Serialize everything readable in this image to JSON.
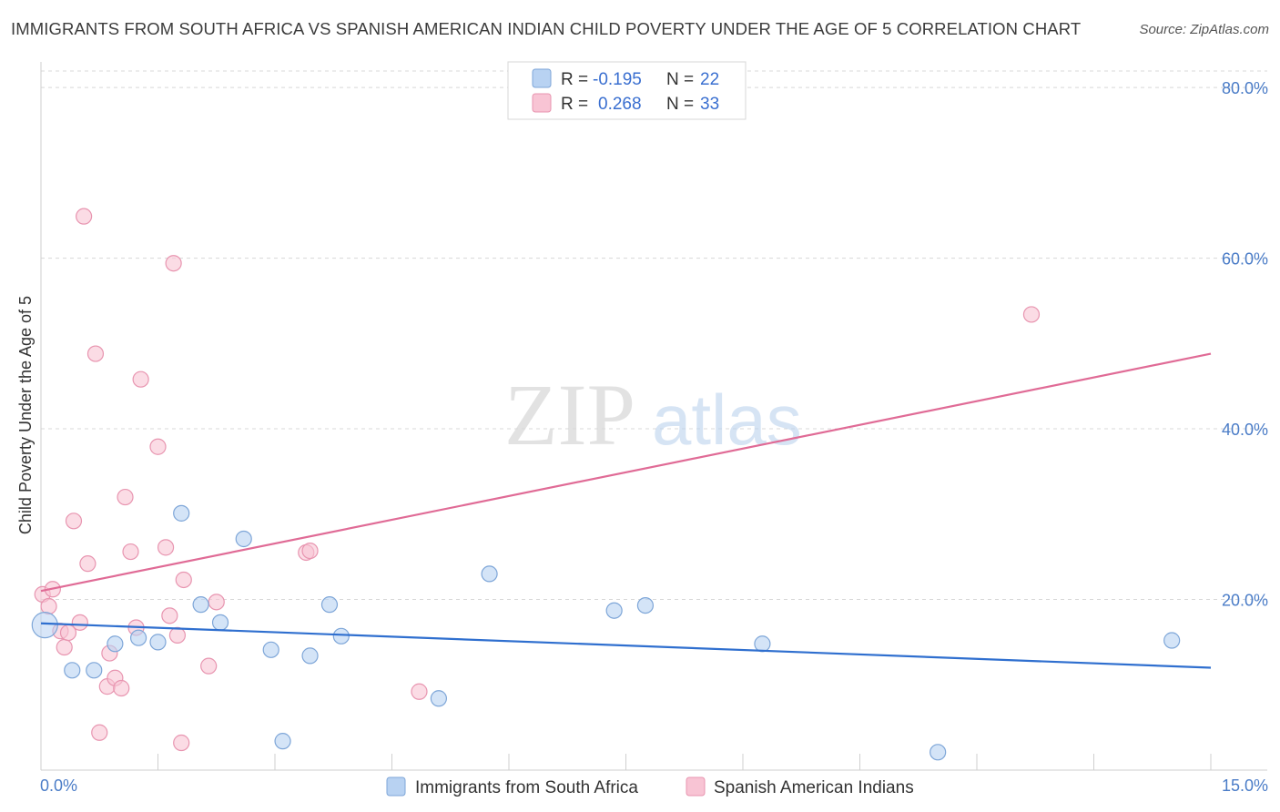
{
  "title": "IMMIGRANTS FROM SOUTH AFRICA VS SPANISH AMERICAN INDIAN CHILD POVERTY UNDER THE AGE OF 5 CORRELATION CHART",
  "source": "Source: ZipAtlas.com",
  "watermark": {
    "zip": "ZIP",
    "atlas": "atlas"
  },
  "legend": {
    "r_label": "R =",
    "n_label": "N =",
    "series1": {
      "r": "-0.195",
      "n": "22"
    },
    "series2": {
      "r": "0.268",
      "n": "33"
    }
  },
  "colors": {
    "blue_fill": "#b8d2f2",
    "blue_stroke": "#7ea6d8",
    "blue_line": "#2f6fcf",
    "pink_fill": "#f8c4d4",
    "pink_stroke": "#e895b0",
    "pink_line": "#e06b96",
    "grid": "#d8d8d8",
    "tick_text": "#4a7cc7"
  },
  "chart_data": {
    "type": "scatter",
    "title": "IMMIGRANTS FROM SOUTH AFRICA VS SPANISH AMERICAN INDIAN CHILD POVERTY UNDER THE AGE OF 5 CORRELATION CHART",
    "xlabel": "",
    "ylabel": "Child Poverty Under the Age of 5",
    "xlim": [
      0,
      15
    ],
    "ylim": [
      0,
      83
    ],
    "x_tick_labels": [
      "0.0%",
      "15.0%"
    ],
    "y_ticks": [
      20,
      40,
      60,
      80
    ],
    "y_tick_labels": [
      "20.0%",
      "40.0%",
      "60.0%",
      "80.0%"
    ],
    "series": [
      {
        "name": "Immigrants from South Africa",
        "r": -0.195,
        "n": 22,
        "trend": {
          "x": [
            0,
            15
          ],
          "y": [
            17.2,
            12.0
          ]
        },
        "points": [
          {
            "x": 0.05,
            "y": 17.0,
            "big": true
          },
          {
            "x": 0.4,
            "y": 11.7
          },
          {
            "x": 0.68,
            "y": 11.7
          },
          {
            "x": 0.95,
            "y": 14.8
          },
          {
            "x": 1.25,
            "y": 15.5
          },
          {
            "x": 1.5,
            "y": 15.0
          },
          {
            "x": 1.8,
            "y": 30.1
          },
          {
            "x": 2.05,
            "y": 19.4
          },
          {
            "x": 2.3,
            "y": 17.3
          },
          {
            "x": 2.6,
            "y": 27.1
          },
          {
            "x": 2.95,
            "y": 14.1
          },
          {
            "x": 3.1,
            "y": 3.4
          },
          {
            "x": 3.45,
            "y": 13.4
          },
          {
            "x": 3.7,
            "y": 19.4
          },
          {
            "x": 3.85,
            "y": 15.7
          },
          {
            "x": 5.1,
            "y": 8.4
          },
          {
            "x": 5.75,
            "y": 23.0
          },
          {
            "x": 7.35,
            "y": 18.7
          },
          {
            "x": 7.75,
            "y": 19.3
          },
          {
            "x": 9.25,
            "y": 14.8
          },
          {
            "x": 11.5,
            "y": 2.1
          },
          {
            "x": 14.5,
            "y": 15.2
          }
        ]
      },
      {
        "name": "Spanish American Indians",
        "r": 0.268,
        "n": 33,
        "trend": {
          "x": [
            0,
            15
          ],
          "y": [
            21.0,
            48.8
          ]
        },
        "points": [
          {
            "x": 0.02,
            "y": 20.6
          },
          {
            "x": 0.1,
            "y": 19.2
          },
          {
            "x": 0.15,
            "y": 21.2
          },
          {
            "x": 0.25,
            "y": 16.3
          },
          {
            "x": 0.3,
            "y": 14.4
          },
          {
            "x": 0.35,
            "y": 16.1
          },
          {
            "x": 0.42,
            "y": 29.2
          },
          {
            "x": 0.5,
            "y": 17.3
          },
          {
            "x": 0.55,
            "y": 64.9
          },
          {
            "x": 0.6,
            "y": 24.2
          },
          {
            "x": 0.7,
            "y": 48.8
          },
          {
            "x": 0.75,
            "y": 4.4
          },
          {
            "x": 0.85,
            "y": 9.8
          },
          {
            "x": 0.88,
            "y": 13.7
          },
          {
            "x": 0.95,
            "y": 10.8
          },
          {
            "x": 1.03,
            "y": 9.6
          },
          {
            "x": 1.08,
            "y": 32.0
          },
          {
            "x": 1.15,
            "y": 25.6
          },
          {
            "x": 1.22,
            "y": 16.7
          },
          {
            "x": 1.28,
            "y": 45.8
          },
          {
            "x": 1.5,
            "y": 37.9
          },
          {
            "x": 1.6,
            "y": 26.1
          },
          {
            "x": 1.65,
            "y": 18.1
          },
          {
            "x": 1.7,
            "y": 59.4
          },
          {
            "x": 1.75,
            "y": 15.8
          },
          {
            "x": 1.8,
            "y": 3.2
          },
          {
            "x": 1.83,
            "y": 22.3
          },
          {
            "x": 2.15,
            "y": 12.2
          },
          {
            "x": 2.25,
            "y": 19.7
          },
          {
            "x": 3.4,
            "y": 25.5
          },
          {
            "x": 3.45,
            "y": 25.7
          },
          {
            "x": 4.85,
            "y": 9.2
          },
          {
            "x": 12.7,
            "y": 53.4
          }
        ]
      }
    ],
    "legend_position": "top-center"
  }
}
